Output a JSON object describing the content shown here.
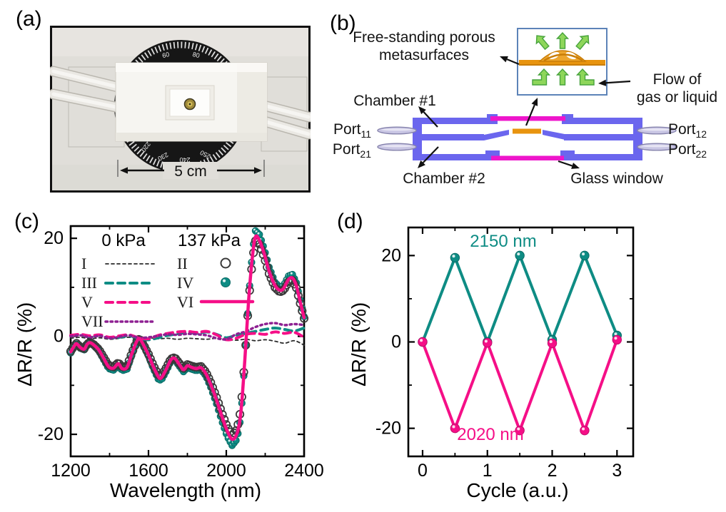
{
  "figure": {
    "panel_labels": {
      "a": "(a)",
      "b": "(b)",
      "c": "(c)",
      "d": "(d)"
    }
  },
  "panel_a": {
    "scale_label": "5 cm",
    "dial_numbers_top": [
      "60",
      "80"
    ],
    "dial_numbers_bottom": [
      "220",
      "230",
      "240",
      "250"
    ]
  },
  "panel_b": {
    "labels": {
      "metasurface_line1": "Free-standing porous",
      "metasurface_line2": "metasurfaces",
      "flow_line1": "Flow of",
      "flow_line2": "gas or liquid",
      "chamber1": "Chamber #1",
      "chamber2": "Chamber #2",
      "glass_window": "Glass window",
      "ports": [
        {
          "base": "Port",
          "sub": "11"
        },
        {
          "base": "Port",
          "sub": "21"
        },
        {
          "base": "Port",
          "sub": "12"
        },
        {
          "base": "Port",
          "sub": "22"
        }
      ]
    },
    "colors": {
      "body": "#6b66ee",
      "window": "#ee16cb",
      "membrane": "#e8940f",
      "membrane_dark": "#c97d08",
      "dome_fill": "#eda62e",
      "arrow_green": "#8ed65a",
      "arrow_green_stroke": "#47a33c",
      "inset_border": "#5c83b8",
      "port_fill": "#c9c6e4",
      "port_stroke": "#8784ad"
    }
  },
  "chart_data": [
    {
      "type": "line",
      "panel": "c",
      "xlabel": "Wavelength (nm)",
      "ylabel": "ΔR/R (%)",
      "xlim": [
        1200,
        2400
      ],
      "ylim": [
        -24.5,
        22.5
      ],
      "xticks": [
        1200,
        1600,
        2000,
        2400
      ],
      "xticks_minor": [
        1400,
        1800,
        2200
      ],
      "yticks": [
        -20,
        0,
        20
      ],
      "yticks_minor": [
        -10,
        10
      ],
      "grid": false,
      "legend": {
        "position": "upper-left",
        "col1_header": "0 kPa",
        "col2_header": "137 kPa",
        "col1": [
          {
            "label": "I",
            "style": "dash-fine",
            "color": "#2b2b2b"
          },
          {
            "label": "III",
            "style": "dash",
            "color": "#0e8c84"
          },
          {
            "label": "V",
            "style": "dash",
            "color": "#f50f87"
          },
          {
            "label": "VII",
            "style": "dot",
            "color": "#8e2192"
          }
        ],
        "col2": [
          {
            "label": "II",
            "marker": "open-circle",
            "color": "#3a3a3a"
          },
          {
            "label": "IV",
            "marker": "sphere",
            "color": "#0e8c84"
          },
          {
            "label": "VI",
            "style": "solid",
            "color": "#f50f87"
          }
        ]
      },
      "main_curve_points": [
        [
          1200,
          -3.2
        ],
        [
          1215,
          -2.2
        ],
        [
          1230,
          -1.5
        ],
        [
          1250,
          -2.3
        ],
        [
          1270,
          -2.6
        ],
        [
          1285,
          -1.6
        ],
        [
          1300,
          -1.3
        ],
        [
          1320,
          -1.8
        ],
        [
          1345,
          -2.8
        ],
        [
          1370,
          -4.5
        ],
        [
          1395,
          -6.2
        ],
        [
          1420,
          -6.5
        ],
        [
          1445,
          -5.6
        ],
        [
          1465,
          -6.6
        ],
        [
          1490,
          -6.3
        ],
        [
          1515,
          -3.5
        ],
        [
          1540,
          -1.0
        ],
        [
          1555,
          -0.5
        ],
        [
          1575,
          -1.8
        ],
        [
          1600,
          -3.8
        ],
        [
          1625,
          -6.2
        ],
        [
          1650,
          -8.2
        ],
        [
          1665,
          -8.5
        ],
        [
          1690,
          -6.8
        ],
        [
          1715,
          -4.8
        ],
        [
          1735,
          -4.5
        ],
        [
          1760,
          -5.8
        ],
        [
          1780,
          -6.8
        ],
        [
          1800,
          -6.0
        ],
        [
          1820,
          -6.3
        ],
        [
          1845,
          -6.6
        ],
        [
          1870,
          -6.4
        ],
        [
          1895,
          -7.6
        ],
        [
          1920,
          -9.8
        ],
        [
          1950,
          -13.0
        ],
        [
          1980,
          -16.6
        ],
        [
          2005,
          -19.3
        ],
        [
          2030,
          -21.0
        ],
        [
          2055,
          -19.8
        ],
        [
          2075,
          -15.5
        ],
        [
          2095,
          -5.0
        ],
        [
          2115,
          7.5
        ],
        [
          2135,
          16.5
        ],
        [
          2150,
          20.3
        ],
        [
          2170,
          19.6
        ],
        [
          2195,
          16.8
        ],
        [
          2220,
          13.3
        ],
        [
          2250,
          10.4
        ],
        [
          2275,
          9.4
        ],
        [
          2295,
          9.8
        ],
        [
          2320,
          11.6
        ],
        [
          2340,
          11.9
        ],
        [
          2360,
          10.3
        ],
        [
          2380,
          7.0
        ],
        [
          2400,
          3.8
        ]
      ],
      "series": [
        {
          "name": "IV",
          "pressure": "137 kPa",
          "type": "markers-sphere",
          "color": "#0e8c84",
          "source": "main",
          "scale": 1.06,
          "step": 10,
          "r": 4.6
        },
        {
          "name": "II",
          "pressure": "137 kPa",
          "type": "markers-open",
          "color": "#3a3a3a",
          "source": "main",
          "scale": 0.96,
          "step": 10,
          "r": 5.2
        },
        {
          "name": "I",
          "pressure": "0 kPa",
          "type": "line",
          "style": "dash-fine",
          "color": "#2b2b2b",
          "points": [
            [
              1200,
              -0.4
            ],
            [
              1250,
              -0.2
            ],
            [
              1300,
              -0.5
            ],
            [
              1350,
              -0.3
            ],
            [
              1400,
              -0.6
            ],
            [
              1450,
              -0.4
            ],
            [
              1500,
              -0.2
            ],
            [
              1550,
              -0.5
            ],
            [
              1600,
              -0.3
            ],
            [
              1650,
              -0.5
            ],
            [
              1700,
              -0.4
            ],
            [
              1750,
              -0.6
            ],
            [
              1800,
              -0.4
            ],
            [
              1850,
              -0.5
            ],
            [
              1900,
              -0.6
            ],
            [
              1950,
              -0.4
            ],
            [
              2000,
              -0.6
            ],
            [
              2050,
              -0.8
            ],
            [
              2100,
              -0.6
            ],
            [
              2150,
              -0.9
            ],
            [
              2200,
              -0.7
            ],
            [
              2250,
              -1.0
            ],
            [
              2300,
              -1.4
            ],
            [
              2350,
              -0.9
            ],
            [
              2400,
              -1.8
            ]
          ]
        },
        {
          "name": "III",
          "pressure": "0 kPa",
          "type": "line",
          "style": "dash",
          "color": "#0e8c84",
          "points": [
            [
              1200,
              0.1
            ],
            [
              1250,
              0.3
            ],
            [
              1300,
              -0.1
            ],
            [
              1350,
              0.2
            ],
            [
              1400,
              -0.3
            ],
            [
              1450,
              -0.2
            ],
            [
              1500,
              0.1
            ],
            [
              1550,
              -0.4
            ],
            [
              1600,
              -0.7
            ],
            [
              1650,
              -0.3
            ],
            [
              1700,
              0.2
            ],
            [
              1750,
              0.5
            ],
            [
              1800,
              0.8
            ],
            [
              1850,
              0.6
            ],
            [
              1900,
              0.9
            ],
            [
              1950,
              0.4
            ],
            [
              2000,
              -0.3
            ],
            [
              2050,
              0.2
            ],
            [
              2100,
              0.6
            ],
            [
              2150,
              1.0
            ],
            [
              2200,
              1.4
            ],
            [
              2250,
              1.7
            ],
            [
              2300,
              1.4
            ],
            [
              2350,
              1.1
            ],
            [
              2400,
              1.7
            ]
          ]
        },
        {
          "name": "V",
          "pressure": "0 kPa",
          "type": "line",
          "style": "dash",
          "color": "#f50f87",
          "points": [
            [
              1200,
              0.2
            ],
            [
              1250,
              0.4
            ],
            [
              1300,
              0.1
            ],
            [
              1350,
              0.3
            ],
            [
              1400,
              -0.2
            ],
            [
              1450,
              0.1
            ],
            [
              1500,
              0.3
            ],
            [
              1550,
              -0.3
            ],
            [
              1600,
              -0.5
            ],
            [
              1650,
              0.2
            ],
            [
              1700,
              0.6
            ],
            [
              1750,
              0.9
            ],
            [
              1800,
              1.0
            ],
            [
              1850,
              0.8
            ],
            [
              1900,
              1.0
            ],
            [
              1950,
              0.3
            ],
            [
              2000,
              -0.7
            ],
            [
              2050,
              -0.4
            ],
            [
              2100,
              0.4
            ],
            [
              2150,
              0.6
            ],
            [
              2200,
              0.4
            ],
            [
              2250,
              0.9
            ],
            [
              2300,
              0.6
            ],
            [
              2350,
              0.8
            ],
            [
              2400,
              -0.2
            ]
          ]
        },
        {
          "name": "VII",
          "pressure": "0 kPa",
          "type": "line",
          "style": "dot",
          "color": "#8e2192",
          "points": [
            [
              1200,
              0.0
            ],
            [
              1250,
              0.2
            ],
            [
              1300,
              -0.2
            ],
            [
              1350,
              0.1
            ],
            [
              1400,
              -0.4
            ],
            [
              1450,
              -0.1
            ],
            [
              1500,
              0.2
            ],
            [
              1550,
              -0.3
            ],
            [
              1600,
              -0.2
            ],
            [
              1650,
              0.1
            ],
            [
              1700,
              0.4
            ],
            [
              1750,
              0.3
            ],
            [
              1800,
              0.5
            ],
            [
              1850,
              0.4
            ],
            [
              1900,
              0.2
            ],
            [
              1950,
              -0.4
            ],
            [
              2000,
              -0.6
            ],
            [
              2050,
              0.4
            ],
            [
              2100,
              1.0
            ],
            [
              2150,
              1.9
            ],
            [
              2200,
              2.5
            ],
            [
              2250,
              2.7
            ],
            [
              2300,
              2.3
            ],
            [
              2350,
              2.5
            ],
            [
              2400,
              2.3
            ]
          ]
        },
        {
          "name": "VI",
          "pressure": "137 kPa",
          "type": "line",
          "style": "solid",
          "color": "#f50f87",
          "source": "main",
          "scale": 1.0
        }
      ]
    },
    {
      "type": "line",
      "panel": "d",
      "xlabel": "Cycle (a.u.)",
      "ylabel": "ΔR/R (%)",
      "xlim": [
        -0.22,
        3.25
      ],
      "ylim": [
        -26.5,
        26.5
      ],
      "xticks": [
        0,
        1,
        2,
        3
      ],
      "xticks_minor": [
        0.5,
        1.5,
        2.5
      ],
      "yticks": [
        -20,
        0,
        20
      ],
      "yticks_minor": [
        -10,
        10
      ],
      "grid": false,
      "series": [
        {
          "name": "2150 nm",
          "color": "#0e8c84",
          "dark": "#0a6b66",
          "x": [
            0,
            0.5,
            1,
            1.5,
            2,
            2.5,
            3
          ],
          "y": [
            0,
            19.5,
            0,
            20,
            0.5,
            20,
            1.5
          ]
        },
        {
          "name": "2020 nm",
          "color": "#f50f87",
          "dark": "#c00c6b",
          "x": [
            0,
            0.5,
            1,
            1.5,
            2,
            2.5,
            3
          ],
          "y": [
            0,
            -20,
            -0.2,
            -20.5,
            -0.3,
            -20.5,
            0.5
          ]
        }
      ],
      "annotations": [
        {
          "text": "2150 nm",
          "color": "#0e8c84"
        },
        {
          "text": "2020 nm",
          "color": "#f50f87"
        }
      ]
    }
  ]
}
